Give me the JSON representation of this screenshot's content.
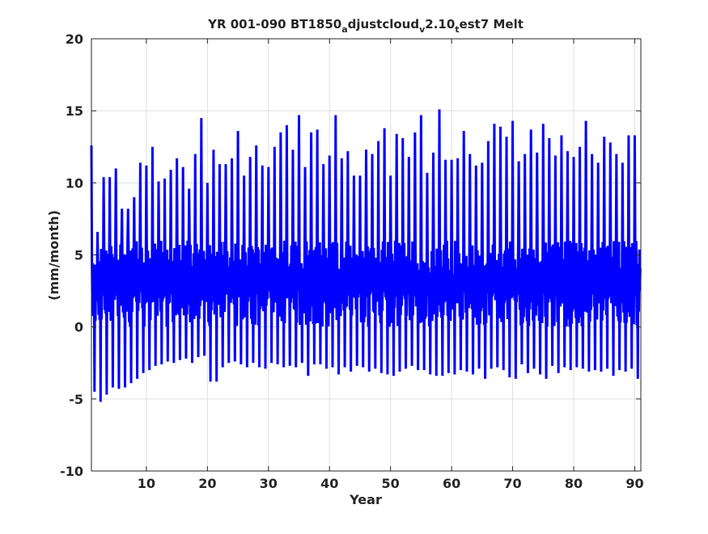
{
  "chart_data": {
    "type": "line",
    "title_parts": [
      {
        "text": "YR 001-090 BT1850",
        "sub": false
      },
      {
        "text": "a",
        "sub": true
      },
      {
        "text": "djustcloud",
        "sub": false
      },
      {
        "text": "v",
        "sub": true
      },
      {
        "text": "2.10",
        "sub": false
      },
      {
        "text": "t",
        "sub": true
      },
      {
        "text": "est7 Melt",
        "sub": false
      }
    ],
    "xlabel": "Year",
    "ylabel": "(mm/month)",
    "xlim": [
      1,
      91
    ],
    "ylim": [
      -10,
      20
    ],
    "xticks": [
      10,
      20,
      30,
      40,
      50,
      60,
      70,
      80,
      90
    ],
    "yticks": [
      -10,
      -5,
      0,
      5,
      10,
      15,
      20
    ],
    "grid": true,
    "series": [
      {
        "color": "#0000ff",
        "sampling": "monthly",
        "x_start": 1,
        "x_end": 91,
        "annual_max": [
          12.6,
          6.6,
          10.4,
          10.4,
          11.0,
          8.2,
          8.2,
          9.0,
          11.4,
          11.2,
          12.5,
          10.1,
          10.3,
          10.9,
          11.7,
          11.1,
          9.6,
          12.0,
          14.5,
          10.0,
          12.3,
          11.3,
          11.3,
          11.7,
          13.6,
          10.5,
          11.8,
          12.6,
          11.2,
          11.1,
          12.5,
          13.5,
          14.0,
          12.3,
          14.7,
          11.1,
          13.5,
          13.7,
          11.3,
          11.9,
          14.7,
          11.7,
          12.2,
          10.5,
          10.5,
          12.3,
          12.0,
          12.9,
          13.8,
          10.5,
          13.4,
          13.1,
          11.8,
          13.5,
          14.7,
          10.7,
          12.1,
          15.1,
          11.6,
          11.6,
          11.7,
          13.6,
          12.0,
          11.2,
          11.4,
          12.9,
          14.1,
          13.9,
          13.2,
          14.3,
          11.5,
          12.0,
          13.7,
          12.1,
          14.1,
          13.1,
          11.9,
          13.3,
          12.2,
          11.8,
          12.5,
          14.3,
          12.0,
          11.4,
          13.2,
          12.8,
          12.0,
          11.4,
          13.3,
          13.3
        ],
        "annual_min": [
          -4.5,
          -5.2,
          -4.7,
          -4.2,
          -4.3,
          -4.2,
          -3.9,
          -3.6,
          -3.2,
          -3.0,
          -2.7,
          -2.6,
          -2.4,
          -2.5,
          -2.3,
          -2.2,
          -2.5,
          -2.1,
          -2.0,
          -3.8,
          -3.8,
          -2.8,
          -2.5,
          -2.4,
          -2.6,
          -2.8,
          -2.5,
          -2.8,
          -2.9,
          -2.5,
          -2.6,
          -2.8,
          -2.7,
          -2.8,
          -2.5,
          -3.4,
          -2.6,
          -2.6,
          -2.9,
          -2.8,
          -3.3,
          -2.8,
          -3.1,
          -2.7,
          -2.8,
          -3.1,
          -2.9,
          -3.2,
          -3.3,
          -3.4,
          -3.1,
          -2.9,
          -2.7,
          -3.0,
          -3.0,
          -3.3,
          -3.4,
          -3.4,
          -3.2,
          -3.3,
          -3.0,
          -3.1,
          -3.3,
          -2.9,
          -3.6,
          -2.9,
          -2.8,
          -3.0,
          -3.5,
          -3.6,
          -2.6,
          -3.2,
          -2.9,
          -3.3,
          -3.6,
          -2.7,
          -3.2,
          -2.8,
          -3.0,
          -2.8,
          -2.9,
          -3.1,
          -3.0,
          -3.1,
          -2.9,
          -3.4,
          -3.0,
          -3.1,
          -2.9,
          -3.6
        ],
        "typical_range": [
          0.0,
          6.0
        ]
      }
    ]
  }
}
